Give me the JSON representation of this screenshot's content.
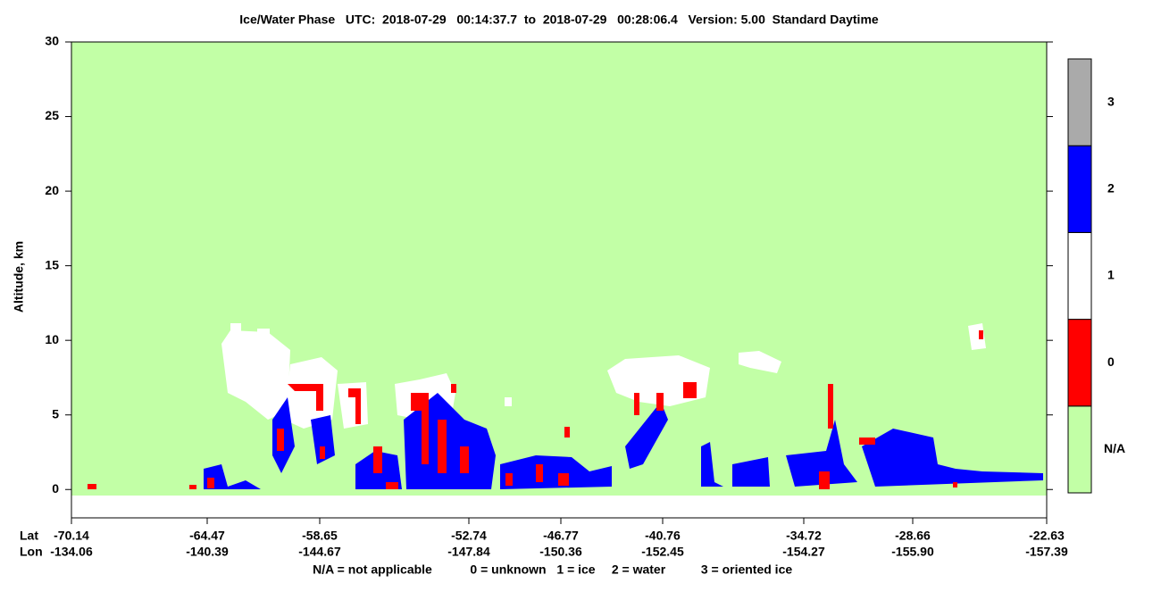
{
  "chart_data": {
    "type": "curtain",
    "title": "Ice/Water Phase   UTC:  2018-07-29   00:14:37.7  to  2018-07-29   00:28:06.4   Version: 5.00  Standard Daytime",
    "y_label": "Altitude, km",
    "ylim": [
      -1.9,
      30
    ],
    "yticks": [
      0,
      5,
      10,
      15,
      20,
      25,
      30
    ],
    "x_row_labels": [
      "Lat",
      "Lon"
    ],
    "lat": [
      "-70.14",
      "-64.47",
      "-58.65",
      "-52.74",
      "-46.77",
      "-40.76",
      "-34.72",
      "-28.66",
      "-22.63"
    ],
    "lon": [
      "-134.06",
      "-140.39",
      "-144.67",
      "-147.84",
      "-150.36",
      "-152.45",
      "-154.27",
      "-155.90",
      "-157.39"
    ],
    "colorbar": {
      "categories": [
        "N/A",
        "0",
        "1",
        "2",
        "3"
      ],
      "colors": [
        "#c2ffa6",
        "#ff0000",
        "#ffffff",
        "#0000ff",
        "#aaaaaa"
      ]
    },
    "footnote": [
      "N/A = not applicable",
      "0 = unknown",
      "1 = ice",
      "2 = water",
      "3 = oriented ice"
    ]
  }
}
